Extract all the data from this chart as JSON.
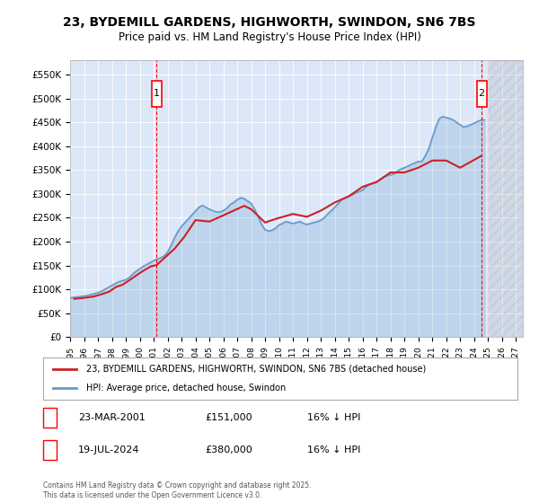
{
  "title": "23, BYDEMILL GARDENS, HIGHWORTH, SWINDON, SN6 7BS",
  "subtitle": "Price paid vs. HM Land Registry's House Price Index (HPI)",
  "ylabel_ticks": [
    "£0",
    "£50K",
    "£100K",
    "£150K",
    "£200K",
    "£250K",
    "£300K",
    "£350K",
    "£400K",
    "£450K",
    "£500K",
    "£550K"
  ],
  "ytick_values": [
    0,
    50000,
    100000,
    150000,
    200000,
    250000,
    300000,
    350000,
    400000,
    450000,
    500000,
    550000
  ],
  "ylim": [
    0,
    580000
  ],
  "xlim_start": 1995.0,
  "xlim_end": 2027.5,
  "background_color": "#dce8f8",
  "plot_bg": "#dce8f8",
  "hpi_color": "#6699cc",
  "price_color": "#cc2222",
  "marker1_x": 2001.22,
  "marker2_x": 2024.54,
  "legend_label_red": "23, BYDEMILL GARDENS, HIGHWORTH, SWINDON, SN6 7BS (detached house)",
  "legend_label_blue": "HPI: Average price, detached house, Swindon",
  "annotation1_label": "1",
  "annotation1_date": "23-MAR-2001",
  "annotation1_price": "£151,000",
  "annotation1_hpi": "16% ↓ HPI",
  "annotation2_label": "2",
  "annotation2_date": "19-JUL-2024",
  "annotation2_price": "£380,000",
  "annotation2_hpi": "16% ↓ HPI",
  "footer": "Contains HM Land Registry data © Crown copyright and database right 2025.\nThis data is licensed under the Open Government Licence v3.0.",
  "hpi_data": {
    "years": [
      1995.0,
      1995.25,
      1995.5,
      1995.75,
      1996.0,
      1996.25,
      1996.5,
      1996.75,
      1997.0,
      1997.25,
      1997.5,
      1997.75,
      1998.0,
      1998.25,
      1998.5,
      1998.75,
      1999.0,
      1999.25,
      1999.5,
      1999.75,
      2000.0,
      2000.25,
      2000.5,
      2000.75,
      2001.0,
      2001.25,
      2001.5,
      2001.75,
      2002.0,
      2002.25,
      2002.5,
      2002.75,
      2003.0,
      2003.25,
      2003.5,
      2003.75,
      2004.0,
      2004.25,
      2004.5,
      2004.75,
      2005.0,
      2005.25,
      2005.5,
      2005.75,
      2006.0,
      2006.25,
      2006.5,
      2006.75,
      2007.0,
      2007.25,
      2007.5,
      2007.75,
      2008.0,
      2008.25,
      2008.5,
      2008.75,
      2009.0,
      2009.25,
      2009.5,
      2009.75,
      2010.0,
      2010.25,
      2010.5,
      2010.75,
      2011.0,
      2011.25,
      2011.5,
      2011.75,
      2012.0,
      2012.25,
      2012.5,
      2012.75,
      2013.0,
      2013.25,
      2013.5,
      2013.75,
      2014.0,
      2014.25,
      2014.5,
      2014.75,
      2015.0,
      2015.25,
      2015.5,
      2015.75,
      2016.0,
      2016.25,
      2016.5,
      2016.75,
      2017.0,
      2017.25,
      2017.5,
      2017.75,
      2018.0,
      2018.25,
      2018.5,
      2018.75,
      2019.0,
      2019.25,
      2019.5,
      2019.75,
      2020.0,
      2020.25,
      2020.5,
      2020.75,
      2021.0,
      2021.25,
      2021.5,
      2021.75,
      2022.0,
      2022.25,
      2022.5,
      2022.75,
      2023.0,
      2023.25,
      2023.5,
      2023.75,
      2024.0,
      2024.25,
      2024.5,
      2024.75
    ],
    "values": [
      82000,
      83000,
      84000,
      85000,
      86000,
      87000,
      89000,
      91000,
      93000,
      96000,
      100000,
      104000,
      108000,
      112000,
      116000,
      118000,
      120000,
      125000,
      132000,
      138000,
      143000,
      148000,
      152000,
      156000,
      160000,
      163000,
      166000,
      170000,
      178000,
      192000,
      208000,
      222000,
      232000,
      240000,
      248000,
      256000,
      264000,
      272000,
      276000,
      272000,
      268000,
      265000,
      262000,
      262000,
      265000,
      270000,
      278000,
      282000,
      288000,
      292000,
      290000,
      285000,
      280000,
      268000,
      252000,
      236000,
      225000,
      222000,
      224000,
      228000,
      235000,
      238000,
      242000,
      240000,
      238000,
      240000,
      242000,
      238000,
      236000,
      238000,
      240000,
      242000,
      245000,
      250000,
      258000,
      265000,
      272000,
      280000,
      288000,
      292000,
      295000,
      298000,
      302000,
      305000,
      308000,
      315000,
      320000,
      322000,
      325000,
      330000,
      335000,
      338000,
      340000,
      342000,
      348000,
      352000,
      355000,
      358000,
      362000,
      365000,
      368000,
      368000,
      380000,
      395000,
      418000,
      440000,
      458000,
      462000,
      460000,
      458000,
      455000,
      450000,
      445000,
      440000,
      442000,
      445000,
      448000,
      452000,
      455000,
      455000
    ]
  },
  "price_data": {
    "years": [
      1995.3,
      1996.0,
      1996.7,
      1997.3,
      1997.8,
      1998.3,
      1998.8,
      1999.2,
      1999.7,
      2000.2,
      2000.8,
      2001.22,
      2002.5,
      2003.2,
      2004.0,
      2005.0,
      2006.0,
      2007.5,
      2008.0,
      2009.0,
      2009.8,
      2011.0,
      2012.0,
      2013.0,
      2014.0,
      2015.0,
      2016.0,
      2017.0,
      2018.0,
      2019.0,
      2020.0,
      2021.0,
      2022.0,
      2023.0,
      2024.54
    ],
    "values": [
      80000,
      82000,
      85000,
      90000,
      95000,
      105000,
      110000,
      118000,
      128000,
      138000,
      148000,
      151000,
      185000,
      210000,
      245000,
      242000,
      255000,
      275000,
      268000,
      240000,
      248000,
      258000,
      252000,
      265000,
      282000,
      295000,
      315000,
      325000,
      345000,
      345000,
      355000,
      370000,
      370000,
      355000,
      380000
    ]
  }
}
